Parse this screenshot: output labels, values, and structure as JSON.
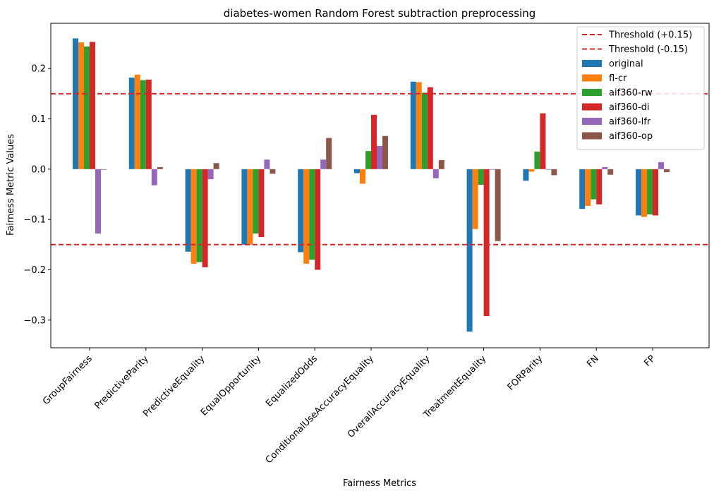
{
  "chart_data": {
    "type": "bar",
    "title": "diabetes-women Random Forest subtraction preprocessing",
    "xlabel": "Fairness Metrics",
    "ylabel": "Fairness Metric Values",
    "ylim": [
      -0.355,
      0.29
    ],
    "yticks": [
      -0.3,
      -0.2,
      -0.1,
      0.0,
      0.1,
      0.2
    ],
    "ytick_labels": [
      "−0.3",
      "−0.2",
      "−0.1",
      "0.0",
      "0.1",
      "0.2"
    ],
    "grid": false,
    "legend_position": "top-right",
    "categories": [
      "GroupFairness",
      "PredictiveParity",
      "PredictiveEquality",
      "EqualOpportunity",
      "EqualizedOdds",
      "ConditionalUseAccuracyEquality",
      "OverallAccuracyEquality",
      "TreatmentEquality",
      "FORParity",
      "FN",
      "FP"
    ],
    "thresholds": [
      {
        "name": "Threshold (+0.15)",
        "value": 0.15,
        "color": "#d62728"
      },
      {
        "name": "Threshold (-0.15)",
        "value": -0.15,
        "color": "#d62728"
      }
    ],
    "series": [
      {
        "name": "original",
        "color": "#1f77b4",
        "values": [
          0.26,
          0.182,
          -0.164,
          -0.15,
          -0.165,
          -0.008,
          0.174,
          -0.323,
          -0.023,
          -0.079,
          -0.092
        ]
      },
      {
        "name": "fl-cr",
        "color": "#ff7f0e",
        "values": [
          0.252,
          0.188,
          -0.188,
          -0.15,
          -0.188,
          -0.029,
          0.173,
          -0.119,
          -0.005,
          -0.073,
          -0.095
        ]
      },
      {
        "name": "aif360-rw",
        "color": "#2ca02c",
        "values": [
          0.244,
          0.177,
          -0.185,
          -0.128,
          -0.18,
          0.036,
          0.152,
          -0.031,
          0.035,
          -0.06,
          -0.09
        ]
      },
      {
        "name": "aif360-di",
        "color": "#d62728",
        "values": [
          0.253,
          0.178,
          -0.195,
          -0.135,
          -0.2,
          0.108,
          0.163,
          -0.292,
          0.111,
          -0.07,
          -0.092
        ]
      },
      {
        "name": "aif360-lfr",
        "color": "#9467bd",
        "values": [
          -0.128,
          -0.032,
          -0.02,
          0.019,
          0.019,
          0.046,
          -0.018,
          0.0,
          0.0,
          0.004,
          0.014
        ]
      },
      {
        "name": "aif360-op",
        "color": "#8c564b",
        "values": [
          0.0,
          0.004,
          0.012,
          -0.009,
          0.062,
          0.066,
          0.018,
          -0.143,
          -0.012,
          -0.011,
          -0.006
        ]
      }
    ]
  }
}
